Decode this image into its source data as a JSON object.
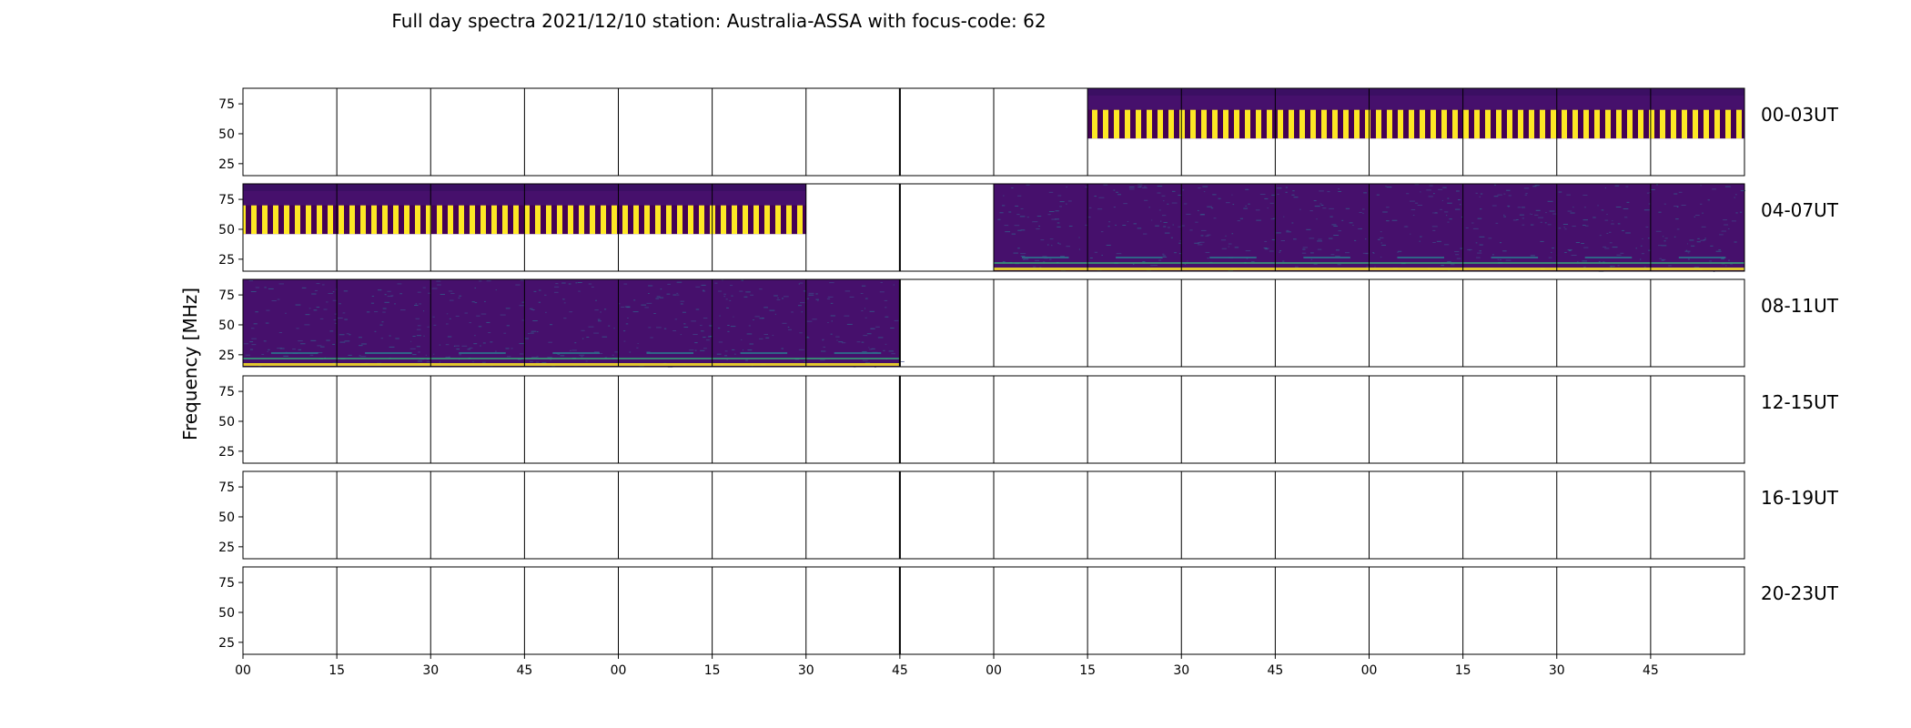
{
  "chart_data": {
    "type": "heatmap",
    "title": "Full day spectra 2021/12/10 station: Australia-ASSA with focus-code: 62",
    "ylabel": "Frequency [MHz]",
    "ylim": [
      15,
      88
    ],
    "yticks": [
      25,
      50,
      75
    ],
    "xtick_labels": [
      "00",
      "15",
      "30",
      "45",
      "00",
      "15",
      "30",
      "45",
      "00",
      "15",
      "30",
      "45",
      "00",
      "15",
      "30",
      "45"
    ],
    "panels_per_row": 16,
    "row_labels": [
      "00-03UT",
      "04-07UT",
      "08-11UT",
      "12-15UT",
      "16-19UT",
      "20-23UT"
    ],
    "colors": {
      "background": "#46106c",
      "band_yellow": "#fde725",
      "band_dark": "#440154",
      "noise_teal": "#2a788e",
      "noise_green": "#35b779",
      "frame": "#000000"
    },
    "panels": [
      {
        "row": 0,
        "cells": [
          9,
          10,
          11,
          12,
          13,
          14,
          15
        ],
        "pattern": "stripes",
        "band": [
          46,
          70
        ]
      },
      {
        "row": 1,
        "cells": [
          0,
          1,
          2,
          3,
          4,
          5
        ],
        "pattern": "stripes",
        "band": [
          46,
          70
        ]
      },
      {
        "row": 1,
        "cells": [
          8,
          9,
          10,
          11,
          12,
          13,
          14,
          15
        ],
        "pattern": "rfi"
      },
      {
        "row": 2,
        "cells": [
          0,
          1,
          2,
          3,
          4,
          5,
          6
        ],
        "pattern": "rfi"
      }
    ]
  }
}
